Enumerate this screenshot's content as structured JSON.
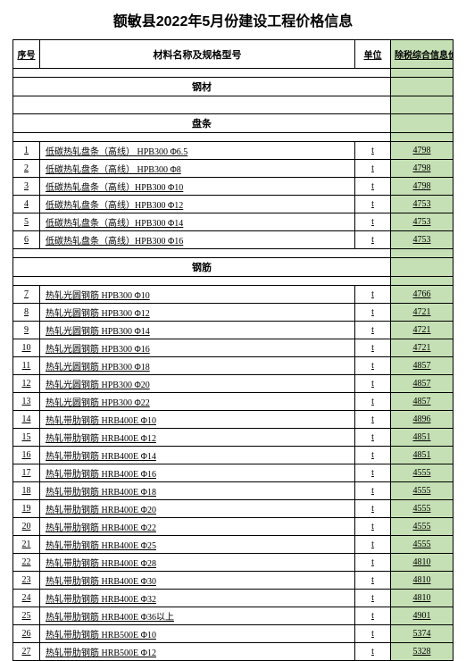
{
  "title": "额敏县2022年5月份建设工程价格信息",
  "colors": {
    "price_bg": "#c5e0b4",
    "border": "#000000",
    "text": "#000000",
    "background": "#ffffff"
  },
  "columns": {
    "idx": "序号",
    "name": "材料名称及规格型号",
    "unit": "单位",
    "price": "除税综合信息价"
  },
  "sections": [
    {
      "type": "section",
      "label": "钢材"
    },
    {
      "type": "section",
      "label": "盘条"
    },
    {
      "type": "rows",
      "rows": [
        {
          "idx": "1",
          "name": "低碳热轧盘条（高线） HPB300  Φ6.5",
          "unit": "t",
          "price": "4798"
        },
        {
          "idx": "2",
          "name": "低碳热轧盘条（高线） HPB300  Φ8",
          "unit": "t",
          "price": "4798"
        },
        {
          "idx": "3",
          "name": "低碳热轧盘条（高线）HPB300  Φ10",
          "unit": "t",
          "price": "4798"
        },
        {
          "idx": "4",
          "name": "低碳热轧盘条（高线）HPB300  Φ12",
          "unit": "t",
          "price": "4753"
        },
        {
          "idx": "5",
          "name": "低碳热轧盘条（高线）HPB300  Φ14",
          "unit": "t",
          "price": "4753"
        },
        {
          "idx": "6",
          "name": "低碳热轧盘条（高线）HPB300  Φ16",
          "unit": "t",
          "price": "4753"
        }
      ]
    },
    {
      "type": "section",
      "label": "钢筋"
    },
    {
      "type": "rows",
      "rows": [
        {
          "idx": "7",
          "name": "热轧光圆钢筋  HPB300  Φ10",
          "unit": "t",
          "price": "4766"
        },
        {
          "idx": "8",
          "name": "热轧光圆钢筋  HPB300  Φ12",
          "unit": "t",
          "price": "4721"
        },
        {
          "idx": "9",
          "name": "热轧光圆钢筋  HPB300  Φ14",
          "unit": "t",
          "price": "4721"
        },
        {
          "idx": "10",
          "name": "热轧光圆钢筋  HPB300  Φ16",
          "unit": "t",
          "price": "4721"
        },
        {
          "idx": "11",
          "name": "热轧光圆钢筋  HPB300  Φ18",
          "unit": "t",
          "price": "4857"
        },
        {
          "idx": "12",
          "name": "热轧光圆钢筋  HPB300  Φ20",
          "unit": "t",
          "price": "4857"
        },
        {
          "idx": "13",
          "name": "热轧光圆钢筋  HPB300  Φ22",
          "unit": "t",
          "price": "4857"
        },
        {
          "idx": "14",
          "name": "热轧带肋钢筋  HRB400E  Φ10",
          "unit": "t",
          "price": "4896"
        },
        {
          "idx": "15",
          "name": "热轧带肋钢筋  HRB400E  Φ12",
          "unit": "t",
          "price": "4851"
        },
        {
          "idx": "16",
          "name": "热轧带肋钢筋  HRB400E  Φ14",
          "unit": "t",
          "price": "4851"
        },
        {
          "idx": "17",
          "name": "热轧带肋钢筋  HRB400E  Φ16",
          "unit": "t",
          "price": "4555"
        },
        {
          "idx": "18",
          "name": "热轧带肋钢筋  HRB400E  Φ18",
          "unit": "t",
          "price": "4555"
        },
        {
          "idx": "19",
          "name": "热轧带肋钢筋  HRB400E  Φ20",
          "unit": "t",
          "price": "4555"
        },
        {
          "idx": "20",
          "name": "热轧带肋钢筋  HRB400E  Φ22",
          "unit": "t",
          "price": "4555"
        },
        {
          "idx": "21",
          "name": "热轧带肋钢筋  HRB400E  Φ25",
          "unit": "t",
          "price": "4555"
        },
        {
          "idx": "22",
          "name": "热轧带肋钢筋  HRB400E  Φ28",
          "unit": "t",
          "price": "4810"
        },
        {
          "idx": "23",
          "name": "热轧带肋钢筋  HRB400E  Φ30",
          "unit": "t",
          "price": "4810"
        },
        {
          "idx": "24",
          "name": "热轧带肋钢筋  HRB400E  Φ32",
          "unit": "t",
          "price": "4810"
        },
        {
          "idx": "25",
          "name": "热轧带肋钢筋  HRB400E  Φ36以上",
          "unit": "t",
          "price": "4901"
        },
        {
          "idx": "26",
          "name": "热轧带肋钢筋  HRB500E  Φ10",
          "unit": "t",
          "price": "5374"
        },
        {
          "idx": "27",
          "name": "热轧带肋钢筋  HRB500E  Φ12",
          "unit": "t",
          "price": "5328"
        }
      ]
    }
  ]
}
